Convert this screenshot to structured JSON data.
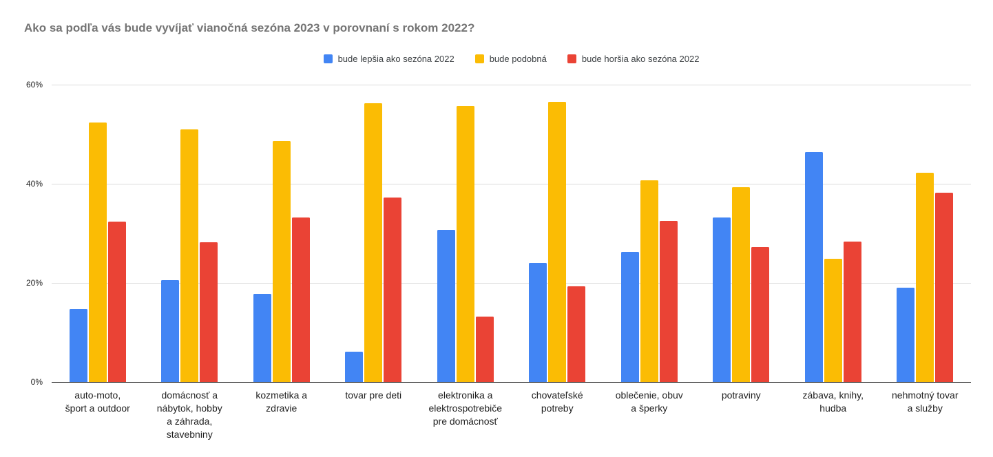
{
  "chart_data": {
    "type": "bar",
    "title": "Ako sa podľa vás bude vyvíjať vianočná sezóna 2023 v porovnaní s rokom 2022?",
    "xlabel": "",
    "ylabel": "",
    "ylim": [
      0,
      60
    ],
    "grid": true,
    "legend_position": "top-center",
    "yticks": [
      {
        "value": 0,
        "label": "0%"
      },
      {
        "value": 20,
        "label": "20%"
      },
      {
        "value": 40,
        "label": "40%"
      },
      {
        "value": 60,
        "label": "60%"
      }
    ],
    "categories": [
      "auto-moto,\nšport a outdoor",
      "domácnosť a\nnábytok, hobby\na záhrada,\nstavebniny",
      "kozmetika a\nzdravie",
      "tovar pre deti",
      "elektronika a\nelektrospotrebiče\npre domácnosť",
      "chovateľské\npotreby",
      "oblečenie, obuv\na šperky",
      "potraviny",
      "zábava, knihy,\nhudba",
      "nehmotný tovar\na služby"
    ],
    "series": [
      {
        "name": "bude lepšia ako sezóna 2022",
        "color": "#4285F4",
        "values": [
          14.9,
          20.7,
          17.9,
          6.2,
          30.8,
          24.2,
          26.4,
          33.3,
          46.5,
          19.2
        ]
      },
      {
        "name": "bude podobná",
        "color": "#FBBC04",
        "values": [
          52.5,
          51.1,
          48.8,
          56.4,
          55.8,
          56.6,
          40.8,
          39.4,
          25.0,
          42.4
        ]
      },
      {
        "name": "bude horšia ako sezóna 2022",
        "color": "#EA4335",
        "values": [
          32.5,
          28.4,
          33.3,
          37.4,
          13.4,
          19.4,
          32.6,
          27.3,
          28.5,
          38.4
        ]
      }
    ]
  },
  "style_colors": {
    "title_text": "#757575",
    "legend_text": "#3c4043",
    "axis_text": "#1f1f1f",
    "gridline": "#d9d9d9",
    "axis_line": "#333333",
    "background": "#ffffff"
  }
}
